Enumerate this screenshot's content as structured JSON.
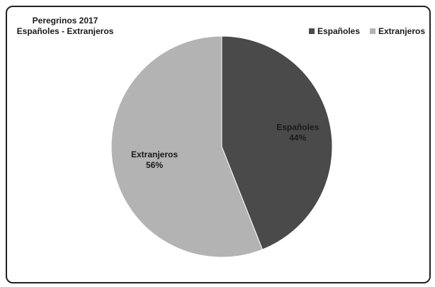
{
  "chart_data": {
    "type": "pie",
    "title": "Peregrinos 2017",
    "subtitle": "Españoles - Extranjeros",
    "categories": [
      "Españoles",
      "Extranjeros"
    ],
    "values": [
      44,
      56
    ],
    "labels": [
      "44%",
      "56%"
    ],
    "colors": [
      "#4a4a4a",
      "#b3b3b3"
    ],
    "legend_position": "top-right"
  }
}
